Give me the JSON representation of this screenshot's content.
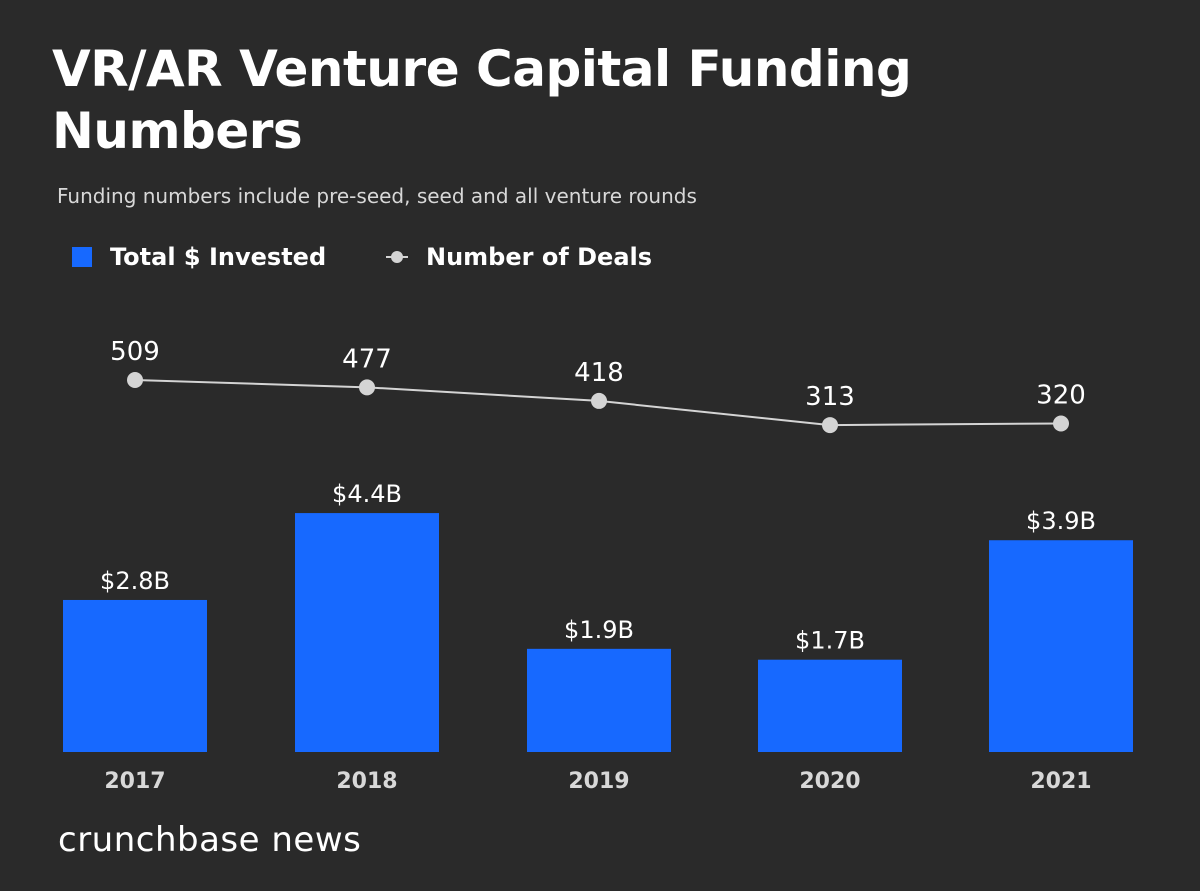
{
  "chart_data": {
    "type": "bar",
    "title": "VR/AR Venture Capital Funding Numbers",
    "subtitle": "Funding numbers include pre-seed, seed and all venture rounds",
    "categories": [
      "2017",
      "2018",
      "2019",
      "2020",
      "2021"
    ],
    "series": [
      {
        "name": "Total $ Invested",
        "type": "bar",
        "unit": "$B",
        "values": [
          2.8,
          4.4,
          1.9,
          1.7,
          3.9
        ],
        "labels": [
          "$2.8B",
          "$4.4B",
          "$1.9B",
          "$1.7B",
          "$3.9B"
        ],
        "color": "#1769ff"
      },
      {
        "name": "Number of Deals",
        "type": "line",
        "values": [
          509,
          477,
          418,
          313,
          320
        ],
        "labels": [
          "509",
          "477",
          "418",
          "313",
          "320"
        ],
        "color": "#d4d4d4"
      }
    ],
    "xlabel": "",
    "ylabel": "",
    "grid": false,
    "legend": "top-left"
  },
  "legend": {
    "bar_label": "Total $ Invested",
    "line_label": "Number of Deals"
  },
  "brand": "crunchbase news",
  "background": "#2a2a2a"
}
